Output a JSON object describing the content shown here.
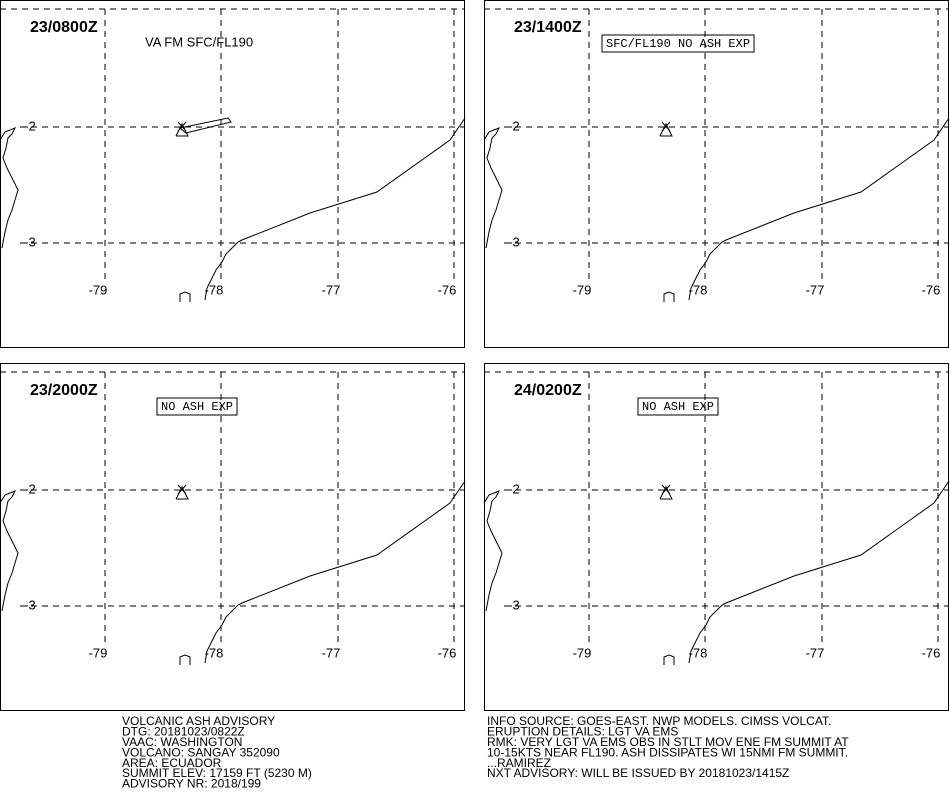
{
  "panels": [
    {
      "time": "23/0800Z",
      "label": "VA FM SFC/FL190",
      "boxed": false,
      "ash_area": true
    },
    {
      "time": "23/1400Z",
      "label": "SFC/FL190 NO ASH EXP",
      "boxed": true,
      "ash_area": false
    },
    {
      "time": "23/2000Z",
      "label": "NO ASH EXP",
      "boxed": true,
      "ash_area": false
    },
    {
      "time": "24/0200Z",
      "label": "NO ASH EXP",
      "boxed": true,
      "ash_area": false
    }
  ],
  "longitude_labels": [
    "-79",
    "-78",
    "-77",
    "-76"
  ],
  "latitude_labels": [
    "-2",
    "-3"
  ],
  "advisory": {
    "left": [
      "VOLCANIC ASH ADVISORY",
      "DTG: 20181023/0822Z",
      "VAAC: WASHINGTON",
      "VOLCANO: SANGAY 352090",
      "AREA: ECUADOR",
      "SUMMIT ELEV: 17159 FT (5230 M)",
      "ADVISORY NR: 2018/199"
    ],
    "right": [
      "INFO SOURCE: GOES-EAST. NWP MODELS. CIMSS VOLCAT.",
      "ERUPTION DETAILS: LGT VA EMS",
      "RMK: VERY LGT VA EMS OBS IN STLT MOV ENE FM SUMMIT AT",
      "10-15KTS NEAR FL190. ASH DISSIPATES WI 15NMI FM SUMMIT.",
      "...RAMIREZ",
      "NXT ADVISORY: WILL BE ISSUED BY 20181023/1415Z"
    ]
  }
}
